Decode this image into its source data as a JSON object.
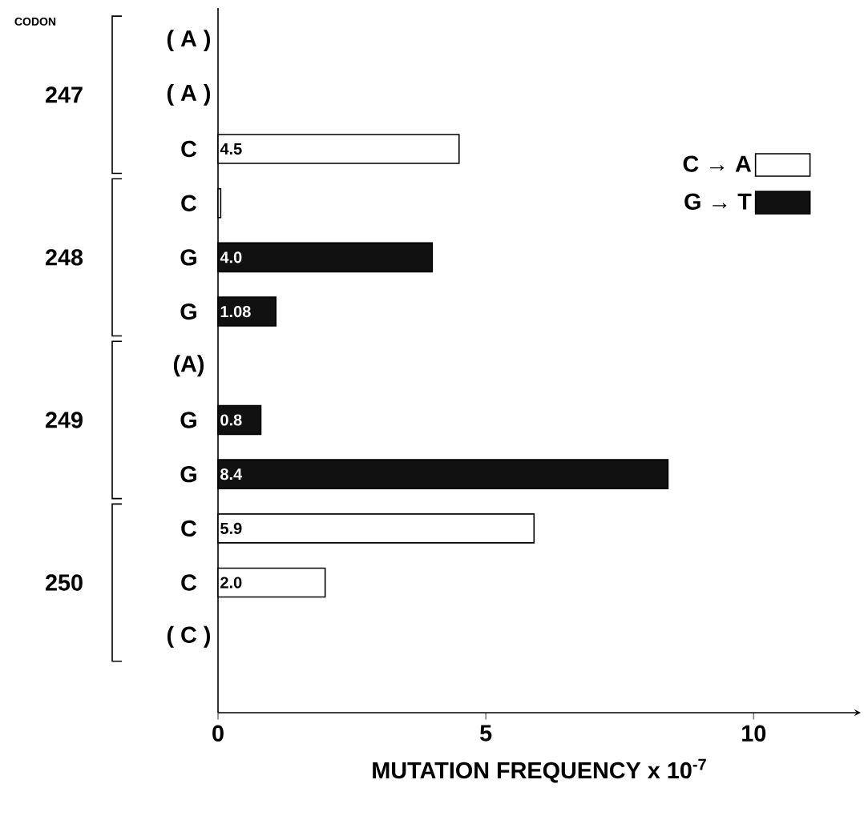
{
  "chart_data": {
    "type": "bar",
    "orientation": "horizontal",
    "xlabel": "MUTATION FREQUENCY x 10$^{-7}$",
    "categories": [
      "( A )",
      "( A )",
      "C",
      "C",
      "G",
      "G",
      "(A)",
      "G",
      "G",
      "C",
      "C",
      "( C )"
    ],
    "series": [
      {
        "name": "C → A",
        "color": "#ffffff",
        "values": [
          null,
          null,
          4.5,
          0.05,
          null,
          null,
          null,
          null,
          null,
          5.9,
          2.0,
          null
        ],
        "value_labels": [
          null,
          null,
          "4.5",
          null,
          null,
          null,
          null,
          null,
          null,
          "5.9",
          "2.0",
          null
        ]
      },
      {
        "name": "G → T",
        "color": "#111111",
        "values": [
          null,
          null,
          null,
          null,
          4.0,
          1.08,
          null,
          0.8,
          8.4,
          null,
          null,
          null
        ],
        "value_labels": [
          null,
          null,
          null,
          null,
          "4.0",
          "1.08",
          null,
          "0.8",
          "8.4",
          null,
          null,
          null
        ]
      }
    ],
    "annotations": [
      "CODON",
      "247",
      "248",
      "249",
      "250"
    ],
    "xlim": [
      0,
      12
    ],
    "xticks": [
      0,
      5,
      10
    ],
    "legend": "top right",
    "grid": false
  }
}
